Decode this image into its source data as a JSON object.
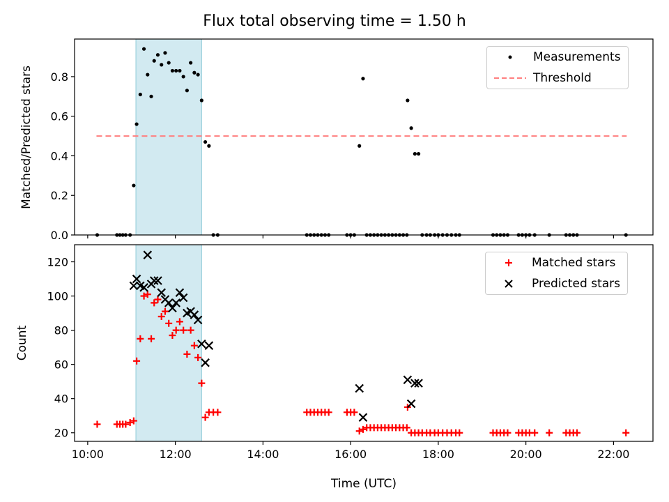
{
  "title": "Flux total observing time = 1.50 h",
  "chart_data": [
    {
      "type": "scatter",
      "ylabel": "Matched/Predicted stars",
      "ylim": [
        0,
        0.99
      ],
      "yticks": [
        "0.0",
        "0.2",
        "0.4",
        "0.6",
        "0.8"
      ],
      "legend": "upper-right",
      "shaded_interval": [
        "11:06",
        "12:36"
      ],
      "shade_color": "#add8e6",
      "series": [
        {
          "name": "Measurements",
          "marker": "dot",
          "color": "#000000",
          "points": [
            [
              "10:13",
              0.0
            ],
            [
              "10:40",
              0.0
            ],
            [
              "10:44",
              0.0
            ],
            [
              "10:48",
              0.0
            ],
            [
              "10:52",
              0.0
            ],
            [
              "10:58",
              0.0
            ],
            [
              "11:03",
              0.25
            ],
            [
              "11:07",
              0.56
            ],
            [
              "11:12",
              0.71
            ],
            [
              "11:17",
              0.94
            ],
            [
              "11:22",
              0.81
            ],
            [
              "11:27",
              0.7
            ],
            [
              "11:31",
              0.88
            ],
            [
              "11:36",
              0.91
            ],
            [
              "11:41",
              0.86
            ],
            [
              "11:46",
              0.92
            ],
            [
              "11:51",
              0.87
            ],
            [
              "11:56",
              0.83
            ],
            [
              "12:01",
              0.83
            ],
            [
              "12:06",
              0.83
            ],
            [
              "12:11",
              0.8
            ],
            [
              "12:16",
              0.73
            ],
            [
              "12:21",
              0.87
            ],
            [
              "12:26",
              0.82
            ],
            [
              "12:31",
              0.81
            ],
            [
              "12:36",
              0.68
            ],
            [
              "12:41",
              0.47
            ],
            [
              "12:46",
              0.45
            ],
            [
              "12:52",
              0.0
            ],
            [
              "12:58",
              0.0
            ],
            [
              "15:00",
              0.0
            ],
            [
              "15:05",
              0.0
            ],
            [
              "15:10",
              0.0
            ],
            [
              "15:15",
              0.0
            ],
            [
              "15:20",
              0.0
            ],
            [
              "15:25",
              0.0
            ],
            [
              "15:30",
              0.0
            ],
            [
              "15:55",
              0.0
            ],
            [
              "16:00",
              0.0
            ],
            [
              "16:05",
              0.0
            ],
            [
              "16:12",
              0.45
            ],
            [
              "16:17",
              0.79
            ],
            [
              "16:22",
              0.0
            ],
            [
              "16:27",
              0.0
            ],
            [
              "16:32",
              0.0
            ],
            [
              "16:37",
              0.0
            ],
            [
              "16:42",
              0.0
            ],
            [
              "16:47",
              0.0
            ],
            [
              "16:52",
              0.0
            ],
            [
              "16:57",
              0.0
            ],
            [
              "17:02",
              0.0
            ],
            [
              "17:07",
              0.0
            ],
            [
              "17:12",
              0.0
            ],
            [
              "17:17",
              0.0
            ],
            [
              "17:18",
              0.68
            ],
            [
              "17:23",
              0.54
            ],
            [
              "17:28",
              0.41
            ],
            [
              "17:33",
              0.41
            ],
            [
              "17:38",
              0.0
            ],
            [
              "17:44",
              0.0
            ],
            [
              "17:49",
              0.0
            ],
            [
              "17:55",
              0.0
            ],
            [
              "18:00",
              0.0
            ],
            [
              "18:06",
              0.0
            ],
            [
              "18:12",
              0.0
            ],
            [
              "18:18",
              0.0
            ],
            [
              "18:24",
              0.0
            ],
            [
              "18:29",
              0.0
            ],
            [
              "19:15",
              0.0
            ],
            [
              "19:20",
              0.0
            ],
            [
              "19:25",
              0.0
            ],
            [
              "19:30",
              0.0
            ],
            [
              "19:35",
              0.0
            ],
            [
              "19:50",
              0.0
            ],
            [
              "19:55",
              0.0
            ],
            [
              "20:00",
              0.0
            ],
            [
              "20:05",
              0.0
            ],
            [
              "20:12",
              0.0
            ],
            [
              "20:32",
              0.0
            ],
            [
              "20:55",
              0.0
            ],
            [
              "21:00",
              0.0
            ],
            [
              "21:05",
              0.0
            ],
            [
              "21:10",
              0.0
            ],
            [
              "22:17",
              0.0
            ]
          ]
        },
        {
          "name": "Threshold",
          "type": "line",
          "style": "dashed",
          "color": "#ff7f7f",
          "points": [
            [
              "10:12",
              0.5
            ],
            [
              "22:18",
              0.5
            ]
          ]
        }
      ]
    },
    {
      "type": "scatter",
      "xlabel": "Time (UTC)",
      "ylabel": "Count",
      "xlim": [
        "09:42",
        "22:54"
      ],
      "xticks": [
        "10:00",
        "12:00",
        "14:00",
        "16:00",
        "18:00",
        "20:00",
        "22:00"
      ],
      "ylim": [
        15,
        130
      ],
      "yticks": [
        "20",
        "40",
        "60",
        "80",
        "100",
        "120"
      ],
      "legend": "upper-right",
      "shaded_interval": [
        "11:06",
        "12:36"
      ],
      "shade_color": "#add8e6",
      "series": [
        {
          "name": "Matched stars",
          "marker": "plus",
          "color": "#ff0000",
          "points": [
            [
              "10:13",
              25
            ],
            [
              "10:40",
              25
            ],
            [
              "10:44",
              25
            ],
            [
              "10:48",
              25
            ],
            [
              "10:52",
              25
            ],
            [
              "10:58",
              26
            ],
            [
              "11:03",
              27
            ],
            [
              "11:07",
              62
            ],
            [
              "11:12",
              75
            ],
            [
              "11:17",
              100
            ],
            [
              "11:22",
              101
            ],
            [
              "11:27",
              75
            ],
            [
              "11:31",
              96
            ],
            [
              "11:36",
              98
            ],
            [
              "11:41",
              88
            ],
            [
              "11:46",
              91
            ],
            [
              "11:51",
              84
            ],
            [
              "11:56",
              77
            ],
            [
              "12:01",
              80
            ],
            [
              "12:06",
              85
            ],
            [
              "12:11",
              80
            ],
            [
              "12:16",
              66
            ],
            [
              "12:21",
              80
            ],
            [
              "12:26",
              71
            ],
            [
              "12:31",
              64
            ],
            [
              "12:36",
              49
            ],
            [
              "12:41",
              29
            ],
            [
              "12:46",
              32
            ],
            [
              "12:52",
              32
            ],
            [
              "12:58",
              32
            ],
            [
              "15:00",
              32
            ],
            [
              "15:05",
              32
            ],
            [
              "15:10",
              32
            ],
            [
              "15:15",
              32
            ],
            [
              "15:20",
              32
            ],
            [
              "15:25",
              32
            ],
            [
              "15:30",
              32
            ],
            [
              "15:55",
              32
            ],
            [
              "16:00",
              32
            ],
            [
              "16:05",
              32
            ],
            [
              "16:12",
              21
            ],
            [
              "16:17",
              22
            ],
            [
              "16:22",
              23
            ],
            [
              "16:27",
              23
            ],
            [
              "16:32",
              23
            ],
            [
              "16:37",
              23
            ],
            [
              "16:42",
              23
            ],
            [
              "16:47",
              23
            ],
            [
              "16:52",
              23
            ],
            [
              "16:57",
              23
            ],
            [
              "17:02",
              23
            ],
            [
              "17:07",
              23
            ],
            [
              "17:12",
              23
            ],
            [
              "17:17",
              23
            ],
            [
              "17:18",
              35
            ],
            [
              "17:23",
              20
            ],
            [
              "17:28",
              20
            ],
            [
              "17:33",
              20
            ],
            [
              "17:38",
              20
            ],
            [
              "17:44",
              20
            ],
            [
              "17:49",
              20
            ],
            [
              "17:55",
              20
            ],
            [
              "18:00",
              20
            ],
            [
              "18:06",
              20
            ],
            [
              "18:12",
              20
            ],
            [
              "18:18",
              20
            ],
            [
              "18:24",
              20
            ],
            [
              "18:29",
              20
            ],
            [
              "19:15",
              20
            ],
            [
              "19:20",
              20
            ],
            [
              "19:25",
              20
            ],
            [
              "19:30",
              20
            ],
            [
              "19:35",
              20
            ],
            [
              "19:50",
              20
            ],
            [
              "19:55",
              20
            ],
            [
              "20:00",
              20
            ],
            [
              "20:05",
              20
            ],
            [
              "20:12",
              20
            ],
            [
              "20:32",
              20
            ],
            [
              "20:55",
              20
            ],
            [
              "21:00",
              20
            ],
            [
              "21:05",
              20
            ],
            [
              "21:10",
              20
            ],
            [
              "22:17",
              20
            ]
          ]
        },
        {
          "name": "Predicted stars",
          "marker": "x",
          "color": "#000000",
          "points": [
            [
              "11:03",
              106
            ],
            [
              "11:07",
              110
            ],
            [
              "11:12",
              106
            ],
            [
              "11:17",
              105
            ],
            [
              "11:22",
              124
            ],
            [
              "11:27",
              107
            ],
            [
              "11:31",
              109
            ],
            [
              "11:36",
              109
            ],
            [
              "11:41",
              102
            ],
            [
              "11:46",
              98
            ],
            [
              "11:51",
              96
            ],
            [
              "11:56",
              93
            ],
            [
              "12:01",
              96
            ],
            [
              "12:06",
              102
            ],
            [
              "12:11",
              99
            ],
            [
              "12:16",
              90
            ],
            [
              "12:21",
              91
            ],
            [
              "12:26",
              89
            ],
            [
              "12:31",
              86
            ],
            [
              "12:36",
              72
            ],
            [
              "12:41",
              61
            ],
            [
              "12:46",
              71
            ],
            [
              "16:12",
              46
            ],
            [
              "16:17",
              29
            ],
            [
              "17:18",
              51
            ],
            [
              "17:23",
              37
            ],
            [
              "17:28",
              49
            ],
            [
              "17:33",
              49
            ]
          ]
        }
      ]
    }
  ]
}
